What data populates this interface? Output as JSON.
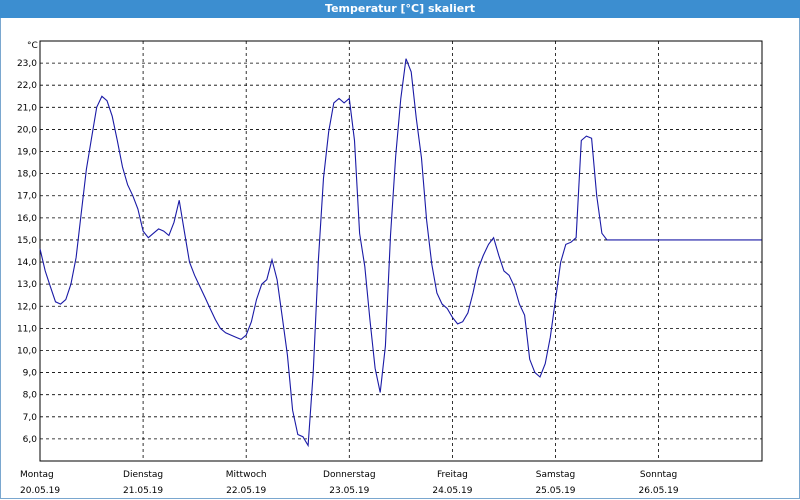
{
  "window": {
    "title": "Temperatur [°C] skaliert"
  },
  "colors": {
    "titlebar": "#3c8ed0",
    "line": "#1a1aa6",
    "grid": "#000000"
  },
  "chart_data": {
    "type": "line",
    "title": "Temperatur [°C] skaliert",
    "ylabel": "°C",
    "xlabel": "",
    "ylim": [
      5.0,
      24.0
    ],
    "y_ticks": [
      "6,0",
      "7,0",
      "8,0",
      "9,0",
      "10,0",
      "11,0",
      "12,0",
      "13,0",
      "14,0",
      "15,0",
      "16,0",
      "17,0",
      "18,0",
      "19,0",
      "20,0",
      "21,0",
      "22,0",
      "23,0"
    ],
    "x_categories": [
      {
        "day": "Montag",
        "date": "20.05.19"
      },
      {
        "day": "Dienstag",
        "date": "21.05.19"
      },
      {
        "day": "Mittwoch",
        "date": "22.05.19"
      },
      {
        "day": "Donnerstag",
        "date": "23.05.19"
      },
      {
        "day": "Freitag",
        "date": "24.05.19"
      },
      {
        "day": "Samstag",
        "date": "25.05.19"
      },
      {
        "day": "Sonntag",
        "date": "26.05.19"
      }
    ],
    "grid": true,
    "series": [
      {
        "x_days": [
          0.0,
          0.05,
          0.1,
          0.15,
          0.2,
          0.25,
          0.3,
          0.35,
          0.4,
          0.45,
          0.5,
          0.55,
          0.6,
          0.65,
          0.7,
          0.75,
          0.8,
          0.85,
          0.9,
          0.95,
          1.0,
          1.05,
          1.1,
          1.15,
          1.2,
          1.25,
          1.3,
          1.35,
          1.4,
          1.45,
          1.5,
          1.55,
          1.6,
          1.65,
          1.7,
          1.75,
          1.8,
          1.85,
          1.9,
          1.95,
          2.0,
          2.05,
          2.1,
          2.15,
          2.2,
          2.25,
          2.3,
          2.35,
          2.4,
          2.45,
          2.5,
          2.55,
          2.6,
          2.65,
          2.7,
          2.75,
          2.8,
          2.85,
          2.9,
          2.95,
          3.0,
          3.05,
          3.1,
          3.15,
          3.2,
          3.25,
          3.3,
          3.35,
          3.4,
          3.45,
          3.5,
          3.55,
          3.6,
          3.65,
          3.7,
          3.75,
          3.8,
          3.85,
          3.9,
          3.95,
          4.0,
          4.05,
          4.1,
          4.15,
          4.2,
          4.25,
          4.3,
          4.35,
          4.4,
          4.45,
          4.5,
          4.55,
          4.6,
          4.65,
          4.7,
          4.75,
          4.8,
          4.85,
          4.9,
          4.95,
          5.0,
          5.05,
          5.1,
          5.15,
          5.2,
          5.25,
          5.3,
          5.35,
          5.4,
          5.45,
          5.5,
          5.55,
          5.6,
          5.65,
          5.7,
          5.75,
          5.8,
          5.85,
          5.9,
          5.95,
          6.0,
          6.05,
          6.1,
          6.15,
          6.2,
          6.25,
          6.3,
          6.35,
          6.4,
          6.45,
          6.5,
          6.55,
          6.6,
          6.65,
          6.7,
          6.75,
          6.8,
          6.85,
          6.9,
          6.95,
          7.0
        ],
        "values": [
          14.6,
          13.6,
          12.9,
          12.2,
          12.1,
          12.3,
          13.0,
          14.2,
          16.2,
          18.2,
          19.6,
          21.0,
          21.5,
          21.3,
          20.6,
          19.5,
          18.3,
          17.5,
          17.0,
          16.4,
          15.4,
          15.1,
          15.3,
          15.5,
          15.4,
          15.2,
          15.8,
          16.8,
          15.4,
          14.0,
          13.4,
          12.9,
          12.4,
          11.9,
          11.4,
          11.0,
          10.8,
          10.7,
          10.6,
          10.5,
          10.7,
          11.3,
          12.3,
          13.0,
          13.2,
          14.1,
          13.2,
          11.5,
          9.8,
          7.3,
          6.2,
          6.1,
          5.7,
          9.0,
          14.1,
          17.8,
          19.9,
          21.2,
          21.4,
          21.2,
          21.4,
          19.5,
          15.3,
          13.8,
          11.4,
          9.2,
          8.1,
          10.2,
          15.2,
          18.8,
          21.4,
          23.2,
          22.6,
          20.5,
          18.7,
          15.9,
          13.9,
          12.6,
          12.1,
          11.9,
          11.5,
          11.2,
          11.3,
          11.7,
          12.6,
          13.7,
          14.3,
          14.8,
          15.1,
          14.3,
          13.6,
          13.4,
          12.9,
          12.1,
          11.6,
          9.6,
          9.0,
          8.8,
          9.4,
          10.6,
          12.3,
          14.0,
          14.8,
          14.9,
          15.1,
          19.5,
          19.7,
          19.6,
          17.0,
          15.3,
          15.0,
          15.0,
          15.0,
          15.0,
          15.0,
          15.0,
          15.0,
          15.0,
          15.0,
          15.0,
          15.0,
          15.0,
          15.0,
          15.0,
          15.0,
          15.0,
          15.0,
          15.0,
          15.0,
          15.0,
          15.0,
          15.0,
          15.0,
          15.0,
          15.0,
          15.0,
          15.0,
          15.0,
          15.0,
          15.0,
          15.0
        ]
      }
    ]
  }
}
